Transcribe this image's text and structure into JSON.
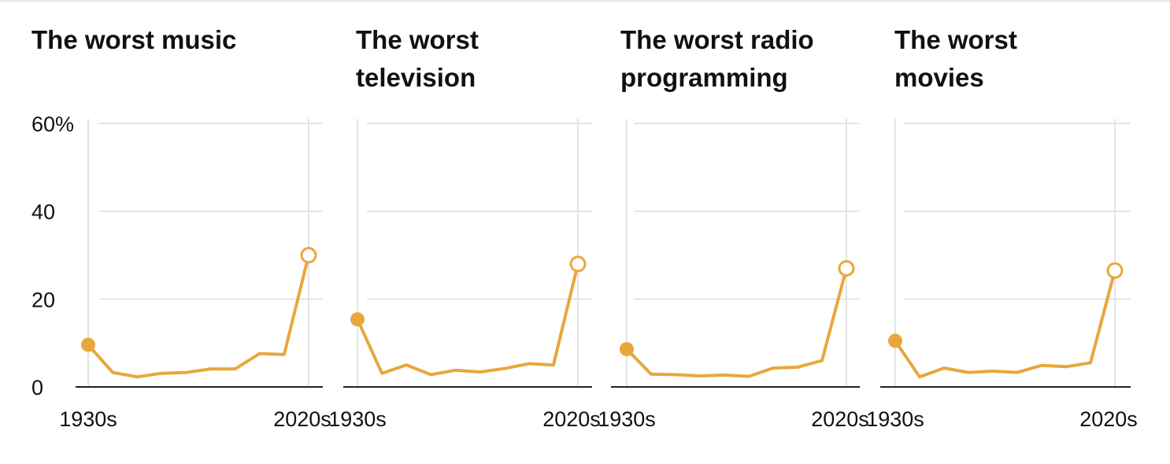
{
  "chart_data": [
    {
      "type": "line",
      "title": [
        "The worst music"
      ],
      "x": [
        "1930s",
        "1940s",
        "1950s",
        "1960s",
        "1970s",
        "1980s",
        "1990s",
        "2000s",
        "2010s",
        "2020s"
      ],
      "x_tick_labels": [
        "1930s",
        "2020s"
      ],
      "series": [
        {
          "values": [
            9.6,
            3.3,
            2.3,
            3.1,
            3.3,
            4.1,
            4.1,
            7.6,
            7.4,
            30.0
          ]
        }
      ],
      "ylim": [
        0,
        60
      ],
      "y_ticks": [
        0,
        20,
        40,
        60
      ],
      "y_tick_labels": [
        "0",
        "20",
        "40",
        "60%"
      ],
      "grid": true
    },
    {
      "type": "line",
      "title": [
        "The worst",
        "television"
      ],
      "x": [
        "1930s",
        "1940s",
        "1950s",
        "1960s",
        "1970s",
        "1980s",
        "1990s",
        "2000s",
        "2010s",
        "2020s"
      ],
      "x_tick_labels": [
        "1930s",
        "2020s"
      ],
      "series": [
        {
          "values": [
            15.4,
            3.1,
            5.0,
            2.8,
            3.8,
            3.4,
            4.2,
            5.3,
            5.0,
            28.0
          ]
        }
      ],
      "ylim": [
        0,
        60
      ],
      "y_ticks": [
        0,
        20,
        40,
        60
      ],
      "grid": true
    },
    {
      "type": "line",
      "title": [
        "The worst radio",
        "programming"
      ],
      "x": [
        "1930s",
        "1940s",
        "1950s",
        "1960s",
        "1970s",
        "1980s",
        "1990s",
        "2000s",
        "2010s",
        "2020s"
      ],
      "x_tick_labels": [
        "1930s",
        "2020s"
      ],
      "series": [
        {
          "values": [
            8.6,
            2.9,
            2.8,
            2.5,
            2.7,
            2.4,
            4.3,
            4.5,
            6.0,
            27.0
          ]
        }
      ],
      "ylim": [
        0,
        60
      ],
      "y_ticks": [
        0,
        20,
        40,
        60
      ],
      "grid": true
    },
    {
      "type": "line",
      "title": [
        "The worst",
        "movies"
      ],
      "x": [
        "1930s",
        "1940s",
        "1950s",
        "1960s",
        "1970s",
        "1980s",
        "1990s",
        "2000s",
        "2010s",
        "2020s"
      ],
      "x_tick_labels": [
        "1930s",
        "2020s"
      ],
      "series": [
        {
          "values": [
            10.5,
            2.3,
            4.3,
            3.3,
            3.6,
            3.3,
            4.9,
            4.6,
            5.5,
            26.5
          ]
        }
      ],
      "ylim": [
        0,
        60
      ],
      "y_ticks": [
        0,
        20,
        40,
        60
      ],
      "grid": true
    }
  ],
  "colors": {
    "series": "#e8a73c",
    "grid": "#e4e4e4",
    "baseline": "#222222",
    "text": "#111111"
  }
}
